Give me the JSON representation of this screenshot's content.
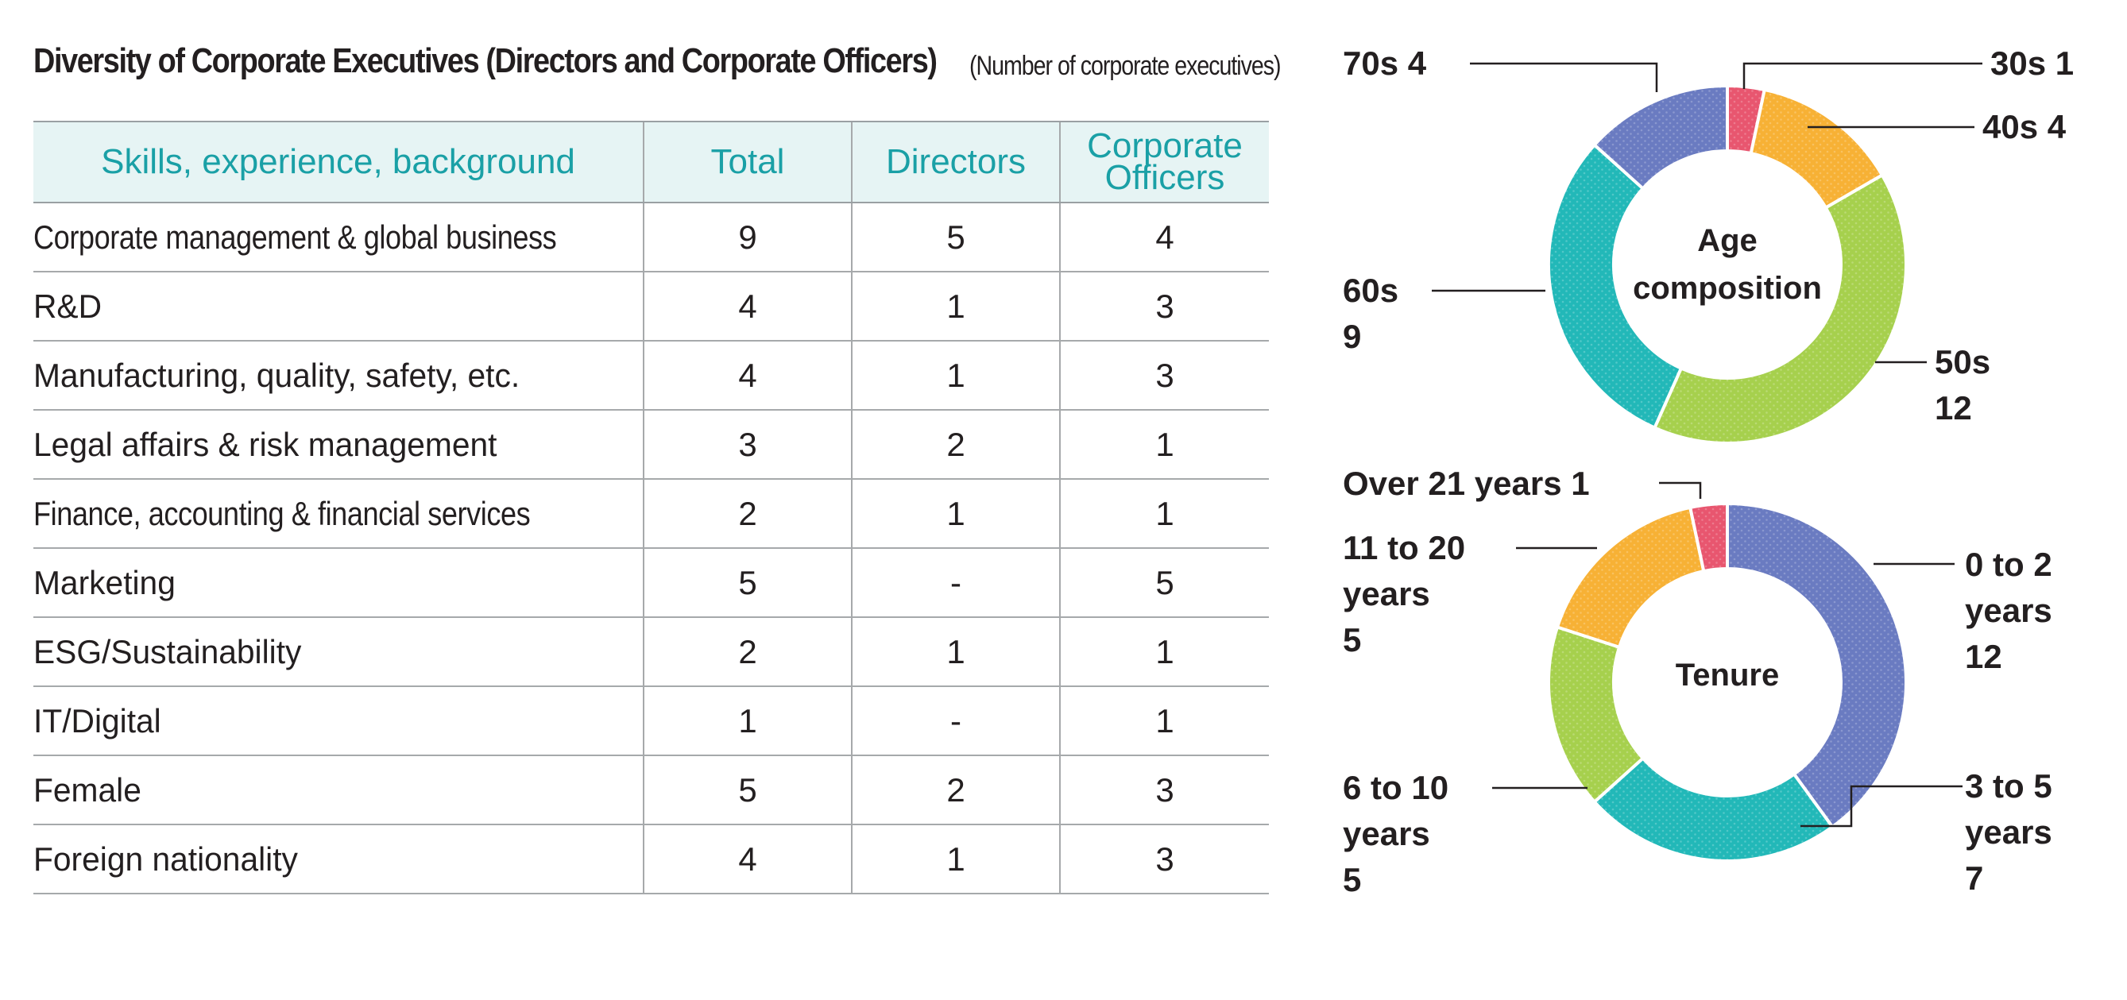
{
  "title": "Diversity of Corporate Executives (Directors and Corporate Officers)",
  "units": "(Number of corporate executives)",
  "table": {
    "headers": [
      "Skills, experience, background",
      "Total",
      "Directors",
      "Corporate Officers"
    ],
    "rows": [
      {
        "skill": "Corporate management & global business",
        "total": "9",
        "directors": "5",
        "officers": "4"
      },
      {
        "skill": "R&D",
        "total": "4",
        "directors": "1",
        "officers": "3"
      },
      {
        "skill": "Manufacturing, quality, safety, etc.",
        "total": "4",
        "directors": "1",
        "officers": "3"
      },
      {
        "skill": "Legal affairs & risk management",
        "total": "3",
        "directors": "2",
        "officers": "1"
      },
      {
        "skill": "Finance, accounting & financial services",
        "total": "2",
        "directors": "1",
        "officers": "1"
      },
      {
        "skill": "Marketing",
        "total": "5",
        "directors": "-",
        "officers": "5"
      },
      {
        "skill": "ESG/Sustainability",
        "total": "2",
        "directors": "1",
        "officers": "1"
      },
      {
        "skill": "IT/Digital",
        "total": "1",
        "directors": "-",
        "officers": "1"
      },
      {
        "skill": "Female",
        "total": "5",
        "directors": "2",
        "officers": "3"
      },
      {
        "skill": "Foreign nationality",
        "total": "4",
        "directors": "1",
        "officers": "3"
      }
    ]
  },
  "chart_data": [
    {
      "type": "pie",
      "donut": true,
      "title": "Age composition",
      "slices": [
        {
          "category": "30s",
          "value": 1,
          "color": "#e8566f",
          "label_lines": [
            "30s 1"
          ]
        },
        {
          "category": "40s",
          "value": 4,
          "color": "#f7b135",
          "label_lines": [
            "40s 4"
          ]
        },
        {
          "category": "50s",
          "value": 12,
          "color": "#a6d04d",
          "label_lines": [
            "50s",
            "12"
          ]
        },
        {
          "category": "60s",
          "value": 9,
          "color": "#22b8b8",
          "label_lines": [
            "60s",
            "9"
          ]
        },
        {
          "category": "70s",
          "value": 4,
          "color": "#6a7bc1",
          "label_lines": [
            "70s 4"
          ]
        }
      ]
    },
    {
      "type": "pie",
      "donut": true,
      "title": "Tenure",
      "slices": [
        {
          "category": "0 to 2 years",
          "value": 12,
          "color": "#6a7bc1",
          "label_lines": [
            "0 to 2",
            "years",
            "12"
          ]
        },
        {
          "category": "3 to 5 years",
          "value": 7,
          "color": "#22b8b8",
          "label_lines": [
            "3 to 5",
            "years",
            "7"
          ]
        },
        {
          "category": "6 to 10 years",
          "value": 5,
          "color": "#a6d04d",
          "label_lines": [
            "6 to 10",
            "years",
            "5"
          ]
        },
        {
          "category": "11 to 20 years",
          "value": 5,
          "color": "#f7b135",
          "label_lines": [
            "11 to 20",
            "years",
            "5"
          ]
        },
        {
          "category": "Over 21 years",
          "value": 1,
          "color": "#e8566f",
          "label_lines": [
            "Over 21 years 1"
          ]
        }
      ]
    }
  ]
}
